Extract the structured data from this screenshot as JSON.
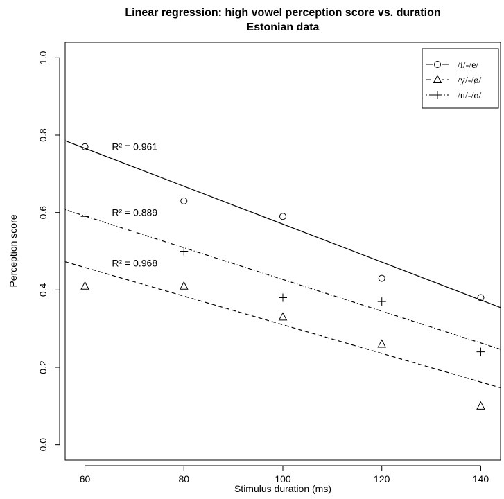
{
  "chart_data": {
    "type": "scatter",
    "title": "Linear regression: high vowel perception score vs. duration",
    "subtitle": "Estonian data",
    "xlabel": "Stimulus duration (ms)",
    "ylabel": "Perception score",
    "xlim": [
      56,
      144
    ],
    "ylim": [
      -0.04,
      1.04
    ],
    "x_ticks": [
      60,
      80,
      100,
      120,
      140
    ],
    "y_ticks": [
      0.0,
      0.2,
      0.4,
      0.6,
      0.8,
      1.0
    ],
    "x_tick_labels": [
      "60",
      "80",
      "100",
      "120",
      "140"
    ],
    "y_tick_labels": [
      "0.0",
      "0.2",
      "0.4",
      "0.6",
      "0.8",
      "1.0"
    ],
    "grid": false,
    "legend_position": "top-right",
    "series": [
      {
        "name": "/i/-/e/",
        "marker": "circle",
        "line_style": "solid",
        "x": [
          60,
          80,
          100,
          120,
          140
        ],
        "y": [
          0.77,
          0.63,
          0.59,
          0.43,
          0.38
        ],
        "fit": {
          "intercept": 1.06,
          "slope": -0.0049,
          "r2_label": "R² = 0.961"
        }
      },
      {
        "name": "/y/-/ø/",
        "marker": "triangle",
        "line_style": "dashed",
        "x": [
          60,
          80,
          100,
          120,
          140
        ],
        "y": [
          0.41,
          0.41,
          0.33,
          0.26,
          0.1
        ],
        "fit": {
          "intercept": 0.68,
          "slope": -0.0037,
          "r2_label": "R² = 0.968"
        }
      },
      {
        "name": "/u/-/o/",
        "marker": "plus",
        "line_style": "dotdash",
        "x": [
          60,
          80,
          100,
          120,
          140
        ],
        "y": [
          0.59,
          0.5,
          0.38,
          0.37,
          0.24
        ],
        "fit": {
          "intercept": 0.837,
          "slope": -0.0041,
          "r2_label": "R² = 0.889"
        }
      }
    ]
  }
}
